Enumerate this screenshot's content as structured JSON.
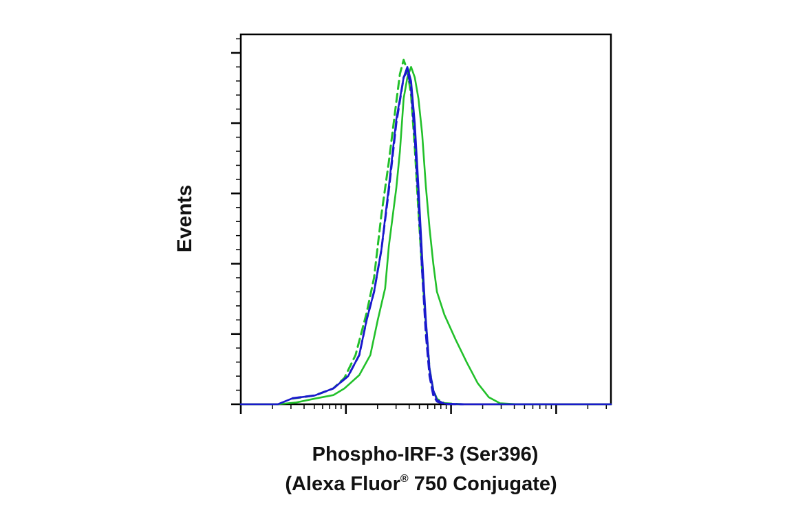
{
  "chart_data": {
    "type": "line",
    "ylabel": "Events",
    "xlabel_line1": "Phospho-IRF-3 (Ser396)",
    "xlabel_line2_pre": "(Alexa Fluor",
    "xlabel_line2_reg": "®",
    "xlabel_line2_post": " 750 Conjugate)",
    "x_scale": "log",
    "x_major_ticks": 4,
    "y_major_ticks": 6,
    "grid": false,
    "colors": {
      "green": "#22c02a",
      "blue": "#1a1acc",
      "axis": "#000000"
    },
    "series": [
      {
        "color": "#22c02a",
        "dash": false,
        "points": [
          [
            0.0,
            0.0
          ],
          [
            0.05,
            0.0
          ],
          [
            0.1,
            0.0
          ],
          [
            0.15,
            0.005
          ],
          [
            0.2,
            0.016
          ],
          [
            0.25,
            0.026
          ],
          [
            0.28,
            0.045
          ],
          [
            0.32,
            0.083
          ],
          [
            0.35,
            0.14
          ],
          [
            0.37,
            0.24
          ],
          [
            0.39,
            0.33
          ],
          [
            0.4,
            0.45
          ],
          [
            0.42,
            0.615
          ],
          [
            0.43,
            0.72
          ],
          [
            0.44,
            0.87
          ],
          [
            0.45,
            0.93
          ],
          [
            0.46,
            0.96
          ],
          [
            0.47,
            0.93
          ],
          [
            0.48,
            0.87
          ],
          [
            0.49,
            0.77
          ],
          [
            0.5,
            0.62
          ],
          [
            0.51,
            0.5
          ],
          [
            0.52,
            0.4
          ],
          [
            0.53,
            0.32
          ],
          [
            0.55,
            0.255
          ],
          [
            0.58,
            0.185
          ],
          [
            0.61,
            0.12
          ],
          [
            0.64,
            0.06
          ],
          [
            0.67,
            0.02
          ],
          [
            0.7,
            0.003
          ],
          [
            0.75,
            0.0
          ],
          [
            1.0,
            0.0
          ]
        ]
      },
      {
        "color": "#22c02a",
        "dash": true,
        "points": [
          [
            0.14,
            0.016
          ],
          [
            0.2,
            0.025
          ],
          [
            0.25,
            0.045
          ],
          [
            0.28,
            0.075
          ],
          [
            0.31,
            0.14
          ],
          [
            0.34,
            0.26
          ],
          [
            0.36,
            0.36
          ],
          [
            0.38,
            0.54
          ],
          [
            0.4,
            0.69
          ],
          [
            0.42,
            0.86
          ],
          [
            0.43,
            0.94
          ],
          [
            0.44,
            0.98
          ],
          [
            0.45,
            0.95
          ],
          [
            0.46,
            0.88
          ],
          [
            0.47,
            0.73
          ],
          [
            0.48,
            0.55
          ],
          [
            0.49,
            0.38
          ],
          [
            0.5,
            0.23
          ],
          [
            0.51,
            0.1
          ],
          [
            0.52,
            0.04
          ],
          [
            0.53,
            0.015
          ],
          [
            0.55,
            0.003
          ],
          [
            0.6,
            0.0
          ]
        ]
      },
      {
        "color": "#1a1acc",
        "dash": false,
        "points": [
          [
            0.0,
            0.0
          ],
          [
            0.1,
            0.0
          ],
          [
            0.14,
            0.017
          ],
          [
            0.2,
            0.025
          ],
          [
            0.25,
            0.045
          ],
          [
            0.29,
            0.08
          ],
          [
            0.32,
            0.14
          ],
          [
            0.34,
            0.24
          ],
          [
            0.36,
            0.32
          ],
          [
            0.38,
            0.44
          ],
          [
            0.4,
            0.62
          ],
          [
            0.42,
            0.81
          ],
          [
            0.44,
            0.93
          ],
          [
            0.45,
            0.96
          ],
          [
            0.46,
            0.92
          ],
          [
            0.47,
            0.8
          ],
          [
            0.48,
            0.62
          ],
          [
            0.49,
            0.42
          ],
          [
            0.5,
            0.24
          ],
          [
            0.51,
            0.1
          ],
          [
            0.52,
            0.04
          ],
          [
            0.53,
            0.012
          ],
          [
            0.55,
            0.002
          ],
          [
            0.6,
            0.0
          ],
          [
            1.0,
            0.0
          ]
        ]
      },
      {
        "color": "#1a1acc",
        "dash": true,
        "points": [
          [
            0.14,
            0.017
          ],
          [
            0.2,
            0.025
          ],
          [
            0.25,
            0.045
          ],
          [
            0.29,
            0.08
          ],
          [
            0.32,
            0.14
          ],
          [
            0.34,
            0.24
          ],
          [
            0.36,
            0.32
          ],
          [
            0.38,
            0.44
          ],
          [
            0.4,
            0.61
          ],
          [
            0.42,
            0.8
          ],
          [
            0.44,
            0.93
          ],
          [
            0.45,
            0.95
          ],
          [
            0.46,
            0.9
          ],
          [
            0.47,
            0.76
          ],
          [
            0.48,
            0.58
          ],
          [
            0.49,
            0.38
          ],
          [
            0.5,
            0.2
          ],
          [
            0.51,
            0.08
          ],
          [
            0.52,
            0.025
          ],
          [
            0.53,
            0.008
          ],
          [
            0.55,
            0.001
          ],
          [
            0.6,
            0.0
          ]
        ]
      }
    ]
  }
}
